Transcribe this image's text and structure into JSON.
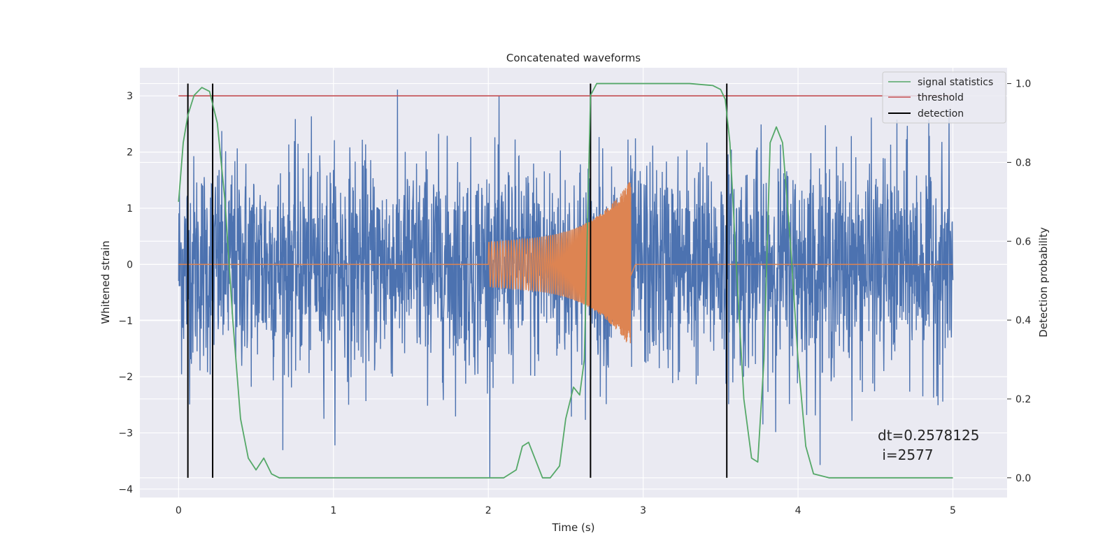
{
  "chart_data": {
    "type": "line",
    "title": "Concatenated waveforms",
    "xlabel": "Time (s)",
    "ylabel": "Whitened strain",
    "ylabel_right": "Detection probability",
    "xlim": [
      -0.25,
      5.35
    ],
    "ylim": [
      -4.15,
      3.5
    ],
    "ylim_right": [
      -0.05,
      1.04
    ],
    "xticks": [
      0,
      1,
      2,
      3,
      4,
      5
    ],
    "yticks": [
      -4,
      -3,
      -2,
      -1,
      0,
      1,
      2,
      3
    ],
    "yticks_right": [
      0.0,
      0.2,
      0.4,
      0.6,
      0.8,
      1.0
    ],
    "xtick_labels": [
      "0",
      "1",
      "2",
      "3",
      "4",
      "5"
    ],
    "ytick_labels": [
      "−4",
      "−3",
      "−2",
      "−1",
      "0",
      "1",
      "2",
      "3"
    ],
    "ytick_labels_right": [
      "0.0",
      "0.2",
      "0.4",
      "0.6",
      "0.8",
      "1.0"
    ],
    "grid": true,
    "legend_position": "top-right",
    "colors": {
      "noise": "#4c72b0",
      "signal": "#dd8452",
      "statistics": "#55a868",
      "threshold": "#c44e52",
      "detection": "#000000",
      "background": "#eaeaf2",
      "grid": "#ffffff"
    },
    "series": [
      {
        "name": "signal statistics",
        "axis": "right",
        "x": [
          0.0,
          0.03,
          0.06,
          0.1,
          0.15,
          0.2,
          0.25,
          0.3,
          0.35,
          0.4,
          0.45,
          0.5,
          0.55,
          0.6,
          0.65,
          0.7,
          1.0,
          1.5,
          1.95,
          2.1,
          2.18,
          2.22,
          2.26,
          2.3,
          2.35,
          2.4,
          2.46,
          2.5,
          2.55,
          2.59,
          2.62,
          2.66,
          2.7,
          3.0,
          3.3,
          3.45,
          3.5,
          3.53,
          3.56,
          3.6,
          3.65,
          3.7,
          3.74,
          3.78,
          3.82,
          3.86,
          3.9,
          3.95,
          4.0,
          4.05,
          4.1,
          4.2,
          4.5,
          5.0
        ],
        "y": [
          0.7,
          0.85,
          0.92,
          0.97,
          0.99,
          0.98,
          0.9,
          0.7,
          0.4,
          0.15,
          0.05,
          0.02,
          0.05,
          0.01,
          0.0,
          0.0,
          0.0,
          0.0,
          0.0,
          0.0,
          0.02,
          0.08,
          0.09,
          0.05,
          0.0,
          0.0,
          0.03,
          0.15,
          0.23,
          0.21,
          0.3,
          0.97,
          1.0,
          1.0,
          1.0,
          0.995,
          0.985,
          0.96,
          0.85,
          0.55,
          0.2,
          0.05,
          0.04,
          0.3,
          0.85,
          0.89,
          0.85,
          0.6,
          0.3,
          0.08,
          0.01,
          0.0,
          0.0,
          0.0
        ]
      },
      {
        "name": "threshold",
        "axis": "left",
        "x": [
          0.0,
          5.0
        ],
        "y": [
          3.0,
          3.0
        ]
      },
      {
        "name": "detection",
        "axis": "right",
        "x": [
          0.06,
          0.22,
          2.66,
          3.54
        ],
        "y_range": [
          0.0,
          1.0
        ]
      }
    ],
    "noise_trace": {
      "x_range": [
        0.0,
        5.0
      ],
      "approx_amplitude_min": -3.8,
      "approx_amplitude_max": 3.3
    },
    "chirp_trace": {
      "x_range": [
        2.0,
        2.92
      ],
      "amplitude_start": 0.4,
      "amplitude_end": 1.3
    },
    "annotation": {
      "line1": "dt=0.2578125",
      "line2": " i=2577"
    }
  }
}
